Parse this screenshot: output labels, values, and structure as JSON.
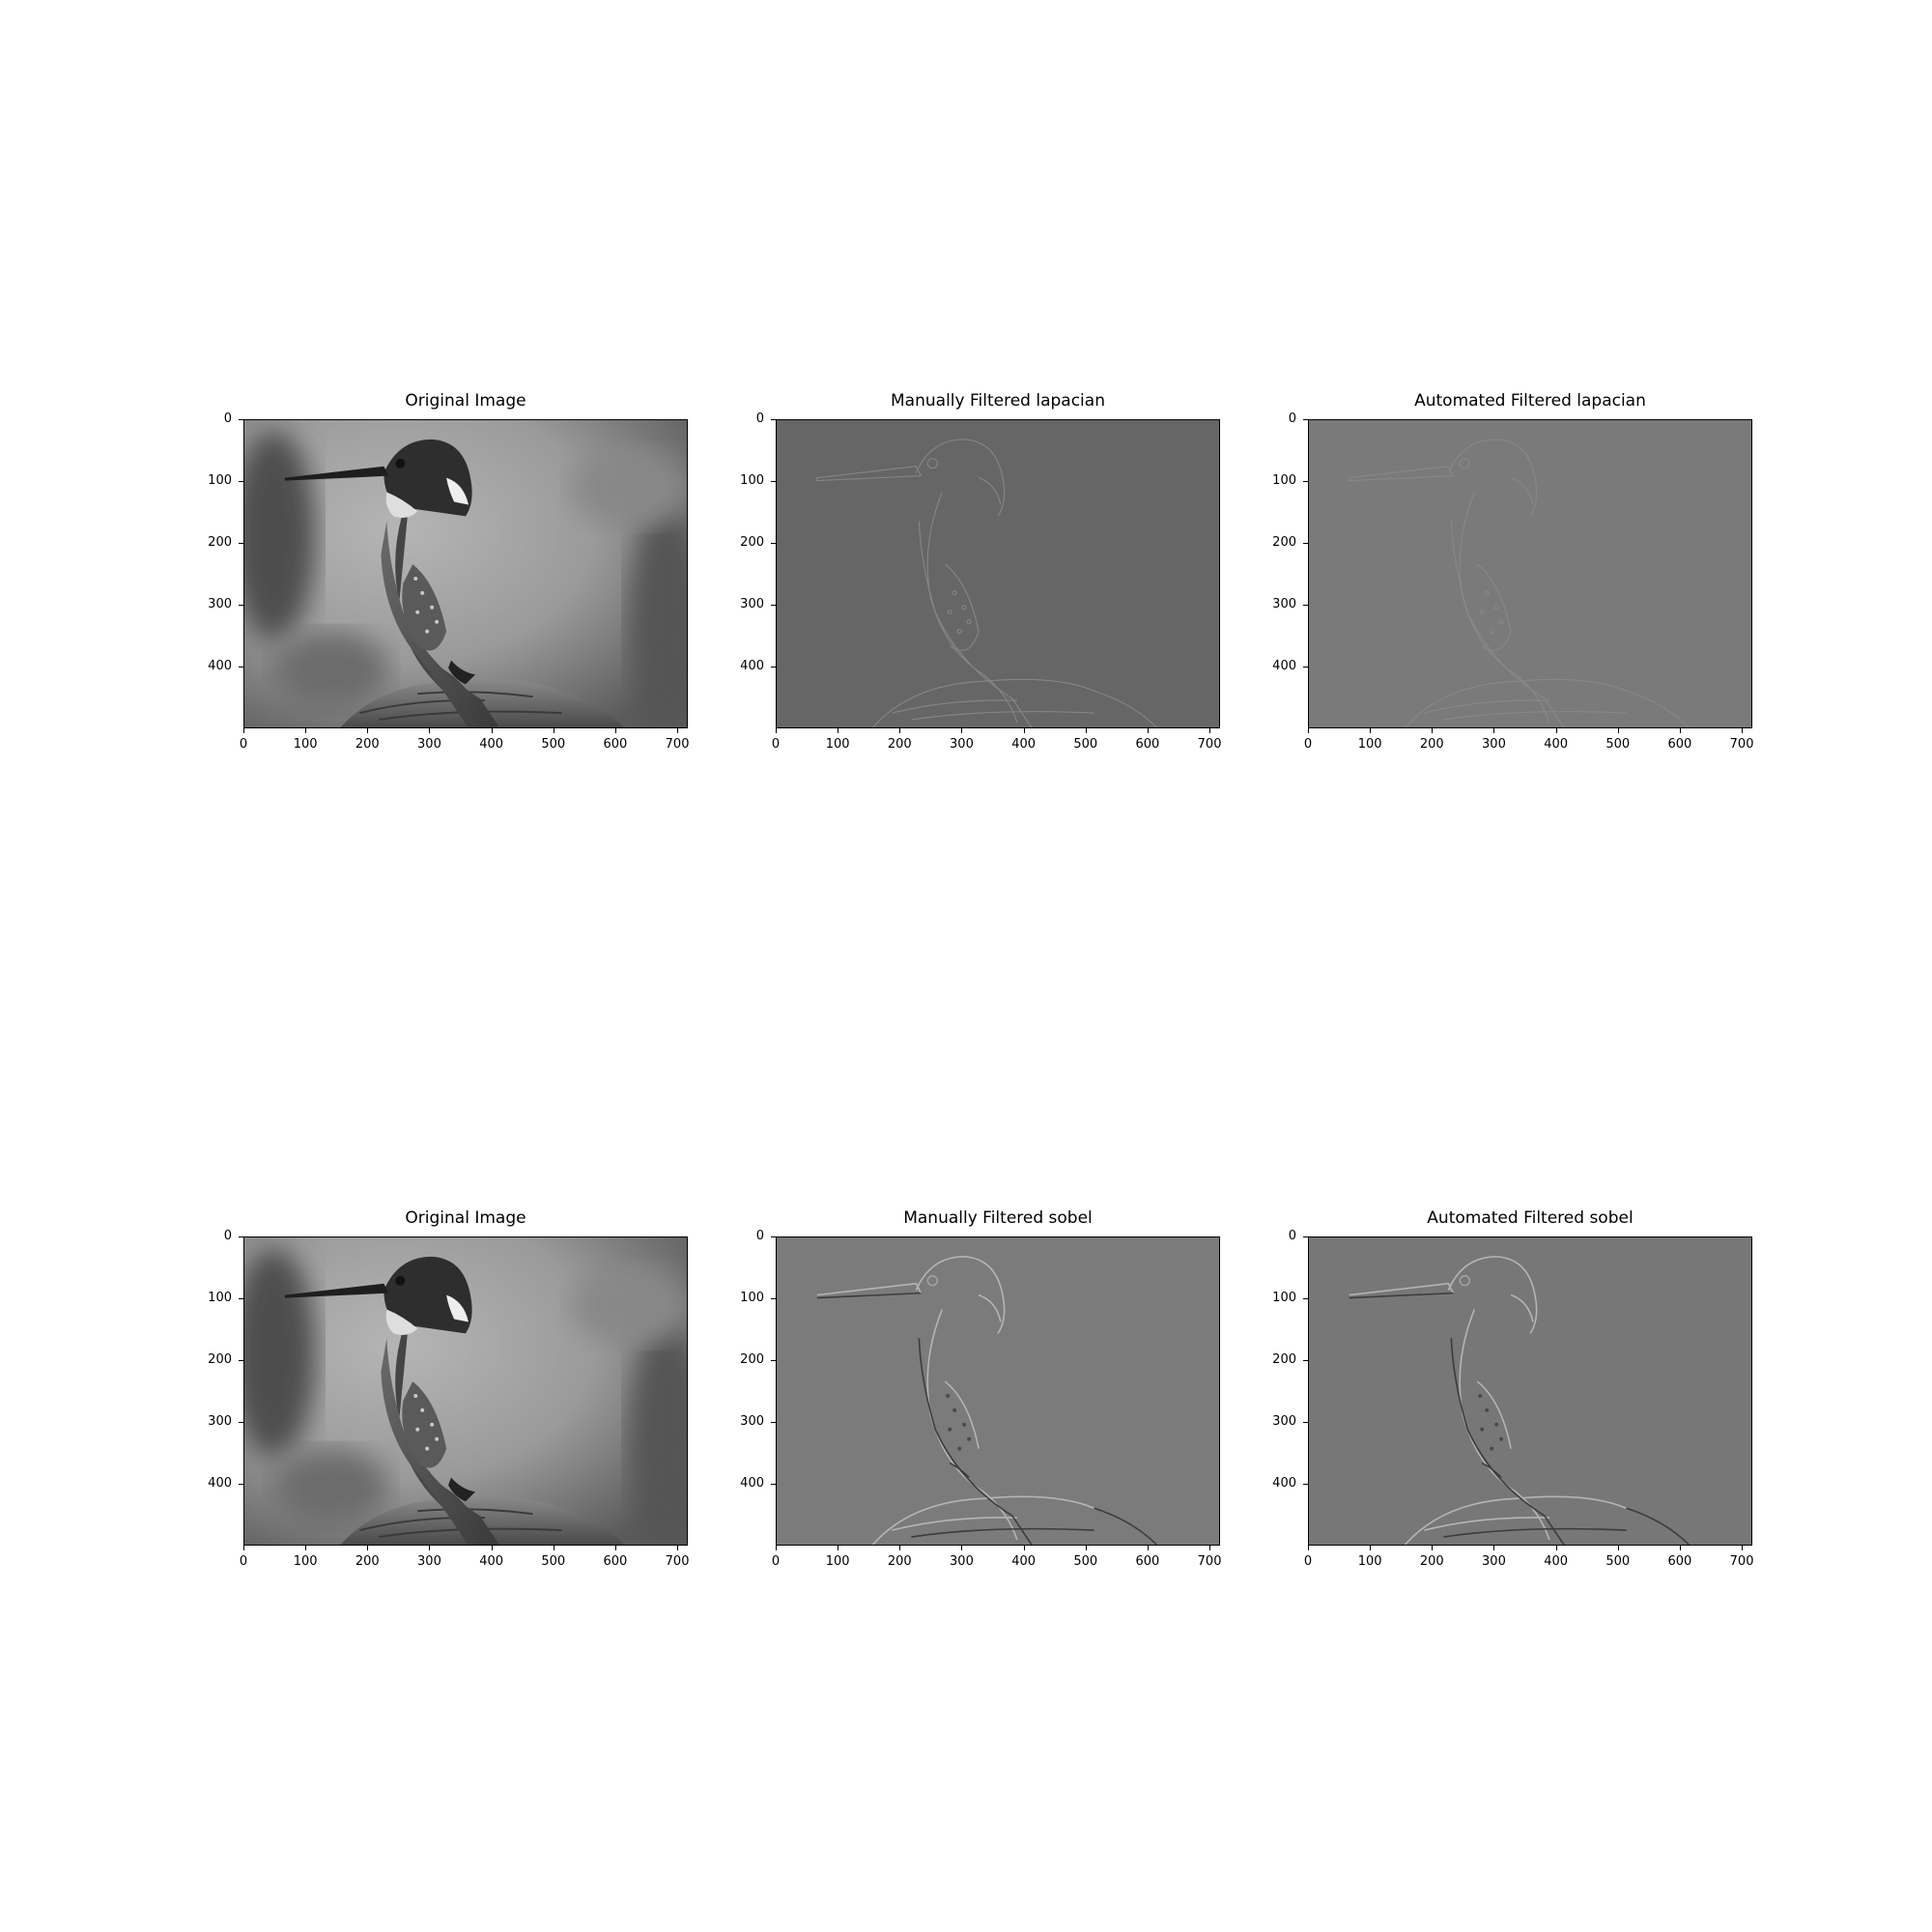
{
  "colors": {
    "background": "#ffffff",
    "axis": "#000000"
  },
  "figure": {
    "x_ticks": [
      "0",
      "100",
      "200",
      "300",
      "400",
      "500",
      "600",
      "700"
    ],
    "y_ticks": [
      "0",
      "100",
      "200",
      "300",
      "400"
    ],
    "x_range": [
      0,
      717
    ],
    "y_range": [
      0,
      500
    ],
    "rows": [
      {
        "panels": [
          {
            "title": "Original Image",
            "kind": "original-image",
            "image_tone": "grayscale photo"
          },
          {
            "title": "Manually Filtered lapacian",
            "kind": "laplacian-edges",
            "image_tone": "#666666"
          },
          {
            "title": "Automated Filtered lapacian",
            "kind": "laplacian-edges",
            "image_tone": "#7a7a7a"
          }
        ]
      },
      {
        "panels": [
          {
            "title": "Original Image",
            "kind": "original-image",
            "image_tone": "grayscale photo"
          },
          {
            "title": "Manually Filtered sobel",
            "kind": "sobel-edges",
            "image_tone": "#7b7b7b"
          },
          {
            "title": "Automated Filtered sobel",
            "kind": "sobel-edges",
            "image_tone": "#777777"
          }
        ]
      }
    ]
  }
}
